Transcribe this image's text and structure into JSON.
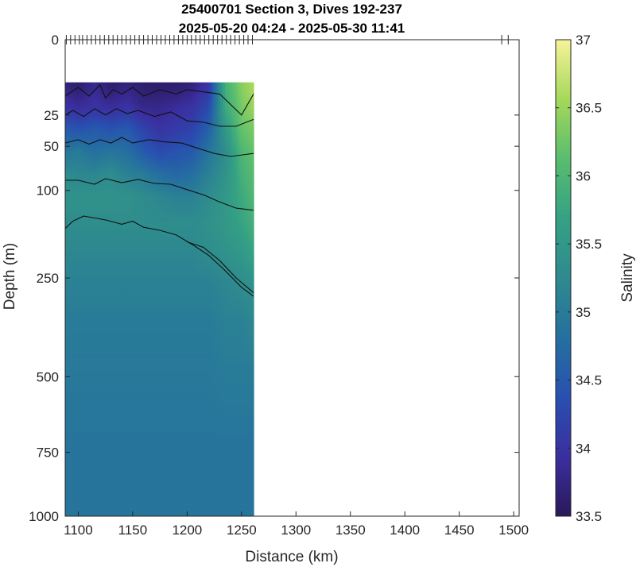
{
  "chart_data": {
    "type": "heatmap",
    "title": "25400701 Section 3, Dives 192-237",
    "subtitle": "2025-05-20 04:24 - 2025-05-30 11:41",
    "xlabel": "Distance (km)",
    "ylabel": "Depth (m)",
    "colorbar_label": "Salinity",
    "xlim": [
      1088,
      1505
    ],
    "x_ticks": [
      1100,
      1150,
      1200,
      1250,
      1300,
      1350,
      1400,
      1450,
      1500
    ],
    "x_tick_labels": [
      "1100",
      "1150",
      "1200",
      "1250",
      "1300",
      "1350",
      "1400",
      "1450",
      "1500"
    ],
    "y_scale": "sqrt",
    "ylim": [
      0,
      1000
    ],
    "y_ticks": [
      0,
      25,
      50,
      100,
      250,
      500,
      750,
      1000
    ],
    "y_tick_labels": [
      "0",
      "25",
      "50",
      "100",
      "250",
      "500",
      "750",
      "1000"
    ],
    "colorbar": {
      "range": [
        33.5,
        37
      ],
      "ticks": [
        33.5,
        34,
        34.5,
        35,
        35.5,
        36,
        36.5,
        37
      ],
      "tick_labels": [
        "33.5",
        "34",
        "34.5",
        "35",
        "35.5",
        "36",
        "36.5",
        "37"
      ],
      "colors": [
        "#2a1858",
        "#3b2fa0",
        "#2850b0",
        "#2570a0",
        "#2e8a8e",
        "#35a184",
        "#58bd6e",
        "#a6d85a",
        "#f7f39a"
      ]
    },
    "data_extent": {
      "x": [
        1088,
        1261
      ],
      "depth": [
        8,
        1000
      ]
    },
    "dive_positions": [
      1089,
      1093,
      1097,
      1101,
      1104,
      1108,
      1112,
      1116,
      1120,
      1124,
      1128,
      1132,
      1136,
      1140,
      1144,
      1148,
      1152,
      1156,
      1160,
      1164,
      1168,
      1172,
      1176,
      1180,
      1184,
      1188,
      1192,
      1196,
      1200,
      1204,
      1208,
      1212,
      1216,
      1220,
      1224,
      1228,
      1232,
      1236,
      1240,
      1244,
      1248,
      1252,
      1256,
      1260,
      1489,
      1495
    ],
    "distance_samples": [
      1088,
      1100,
      1115,
      1130,
      1145,
      1160,
      1175,
      1190,
      1205,
      1220,
      1235,
      1250,
      1261
    ],
    "salinity_profile": {
      "depths": [
        8,
        20,
        35,
        55,
        80,
        110,
        150,
        200,
        260,
        350,
        500,
        700,
        1000
      ],
      "values": [
        [
          33.7,
          33.6,
          33.8,
          33.6,
          33.7,
          33.6,
          33.6,
          33.6,
          33.7,
          34.0,
          35.9,
          36.4,
          36.6
        ],
        [
          34.0,
          33.9,
          34.0,
          33.9,
          34.0,
          33.8,
          33.8,
          33.9,
          34.0,
          34.3,
          35.8,
          36.3,
          36.5
        ],
        [
          34.5,
          34.4,
          34.5,
          34.4,
          34.5,
          34.2,
          34.0,
          34.1,
          34.2,
          34.6,
          35.5,
          36.2,
          36.3
        ],
        [
          34.9,
          35.0,
          34.8,
          34.9,
          34.8,
          34.5,
          34.3,
          34.4,
          34.5,
          34.9,
          35.3,
          36.0,
          36.2
        ],
        [
          35.3,
          35.2,
          35.2,
          35.3,
          35.1,
          35.0,
          34.8,
          34.7,
          34.8,
          35.1,
          35.4,
          35.9,
          36.1
        ],
        [
          35.4,
          35.4,
          35.4,
          35.4,
          35.4,
          35.3,
          35.2,
          35.1,
          35.1,
          35.3,
          35.5,
          35.8,
          36.0
        ],
        [
          35.3,
          35.3,
          35.3,
          35.3,
          35.3,
          35.3,
          35.3,
          35.3,
          35.3,
          35.4,
          35.5,
          35.7,
          35.9
        ],
        [
          35.2,
          35.2,
          35.2,
          35.2,
          35.2,
          35.2,
          35.2,
          35.2,
          35.2,
          35.3,
          35.4,
          35.5,
          35.7
        ],
        [
          35.1,
          35.1,
          35.1,
          35.1,
          35.1,
          35.1,
          35.1,
          35.1,
          35.1,
          35.1,
          35.2,
          35.3,
          35.4
        ],
        [
          35.0,
          35.0,
          35.0,
          35.0,
          35.0,
          35.0,
          35.0,
          35.0,
          35.0,
          35.0,
          35.1,
          35.1,
          35.2
        ],
        [
          34.95,
          34.95,
          34.95,
          34.95,
          34.95,
          34.95,
          34.95,
          34.95,
          34.95,
          34.95,
          35.0,
          35.0,
          35.0
        ],
        [
          34.9,
          34.9,
          34.9,
          34.9,
          34.9,
          34.9,
          34.9,
          34.9,
          34.9,
          34.9,
          34.9,
          34.9,
          34.9
        ],
        [
          34.9,
          34.9,
          34.9,
          34.9,
          34.9,
          34.9,
          34.9,
          34.9,
          34.9,
          34.9,
          34.9,
          34.9,
          34.9
        ]
      ]
    },
    "contours": [
      {
        "x": [
          1088,
          1100,
          1110,
          1120,
          1125,
          1132,
          1140,
          1150,
          1160,
          1175,
          1190,
          1200,
          1215,
          1230,
          1250,
          1261
        ],
        "depth": [
          14,
          10,
          14,
          9,
          15,
          11,
          13,
          10,
          14,
          11,
          13,
          11,
          12,
          13,
          25,
          13
        ]
      },
      {
        "x": [
          1088,
          1095,
          1105,
          1115,
          1125,
          1135,
          1145,
          1155,
          1170,
          1185,
          1200,
          1215,
          1230,
          1245,
          1261
        ],
        "depth": [
          25,
          22,
          26,
          21,
          25,
          21,
          24,
          22,
          26,
          23,
          29,
          30,
          33,
          33,
          28
        ]
      },
      {
        "x": [
          1088,
          1100,
          1110,
          1120,
          1130,
          1140,
          1150,
          1165,
          1180,
          1195,
          1210,
          1225,
          1240,
          1261
        ],
        "depth": [
          47,
          44,
          48,
          44,
          47,
          42,
          47,
          44,
          46,
          47,
          52,
          57,
          60,
          57
        ]
      },
      {
        "x": [
          1088,
          1100,
          1115,
          1125,
          1140,
          1155,
          1170,
          1185,
          1200,
          1215,
          1230,
          1245,
          1261
        ],
        "depth": [
          87,
          87,
          92,
          85,
          90,
          86,
          91,
          92,
          99,
          106,
          116,
          125,
          128
        ]
      },
      {
        "x": [
          1088,
          1095,
          1105,
          1115,
          1125,
          1140,
          1150,
          1160,
          1175,
          1190,
          1205,
          1220,
          1235,
          1250,
          1261
        ],
        "depth": [
          157,
          145,
          137,
          140,
          143,
          150,
          145,
          155,
          160,
          168,
          185,
          205,
          235,
          270,
          290
        ]
      },
      {
        "x": [
          1200,
          1215,
          1230,
          1245,
          1261
        ],
        "depth": [
          180,
          190,
          215,
          250,
          282
        ]
      }
    ]
  }
}
